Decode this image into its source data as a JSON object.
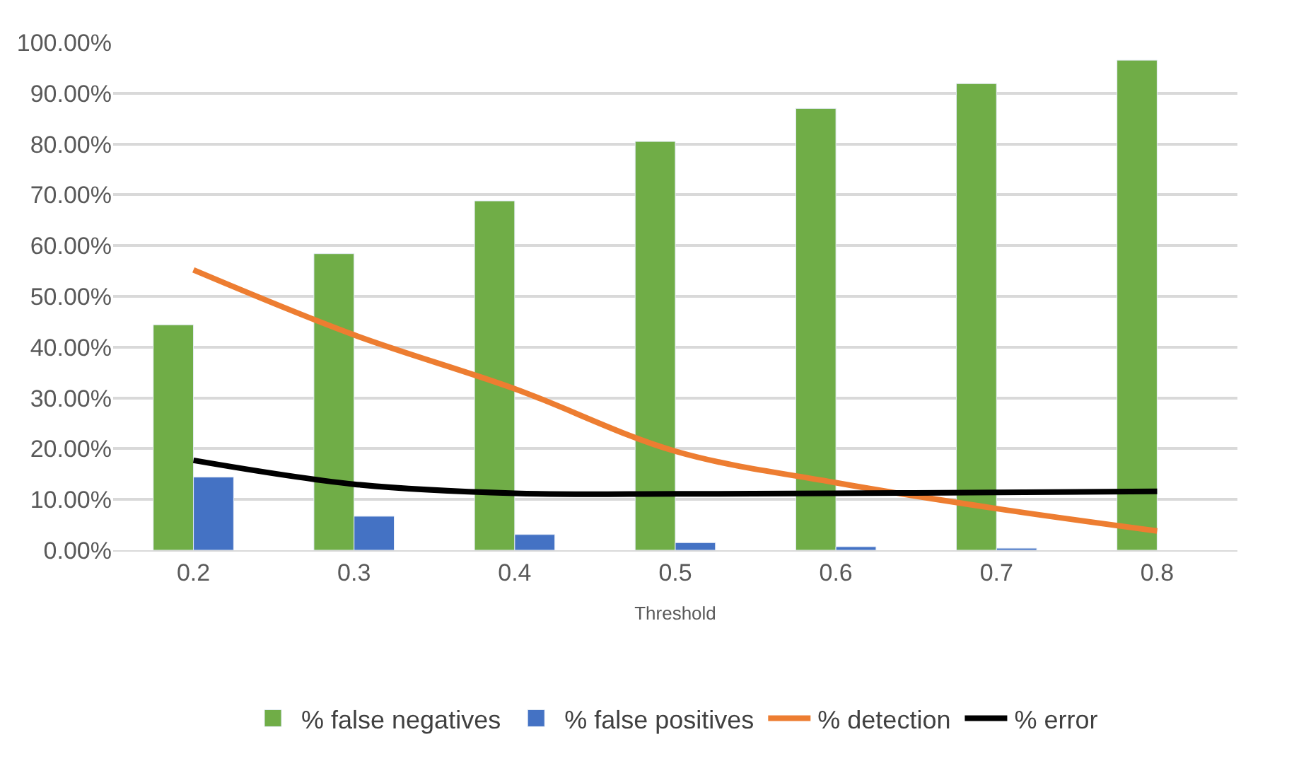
{
  "chart_data": {
    "type": "bar",
    "xlabel": "Threshold",
    "categories": [
      "0.2",
      "0.3",
      "0.4",
      "0.5",
      "0.6",
      "0.7",
      "0.8"
    ],
    "series": [
      {
        "name": "% false negatives",
        "color": "#70ad47",
        "values": [
          44.4,
          58.4,
          68.8,
          80.5,
          87.0,
          91.9,
          96.5
        ]
      },
      {
        "name": "% false positives",
        "color": "#4472c4",
        "values": [
          14.4,
          6.7,
          3.1,
          1.5,
          0.7,
          0.4,
          null
        ]
      },
      {
        "name": "% detection",
        "type": "line",
        "color": "#ed7d31",
        "values": [
          55.2,
          42.4,
          31.8,
          19.5,
          13.3,
          8.2,
          3.8
        ]
      },
      {
        "name": "% error",
        "type": "line",
        "color": "#000000",
        "values": [
          17.7,
          13.0,
          11.2,
          11.1,
          11.2,
          11.4,
          11.6
        ]
      }
    ],
    "ylim": [
      0,
      100
    ],
    "yticks": [
      {
        "value": 0,
        "label": "0.00%"
      },
      {
        "value": 10,
        "label": "10.00%"
      },
      {
        "value": 20,
        "label": "20.00%"
      },
      {
        "value": 30,
        "label": "30.00%"
      },
      {
        "value": 40,
        "label": "40.00%"
      },
      {
        "value": 50,
        "label": "50.00%"
      },
      {
        "value": 60,
        "label": "60.00%"
      },
      {
        "value": 70,
        "label": "70.00%"
      },
      {
        "value": 80,
        "label": "80.00%"
      },
      {
        "value": 90,
        "label": "90.00%"
      },
      {
        "value": 100,
        "label": "100.00%"
      }
    ],
    "grid": "y",
    "legend": "bottom",
    "marker": "none",
    "line_style": "solid"
  }
}
